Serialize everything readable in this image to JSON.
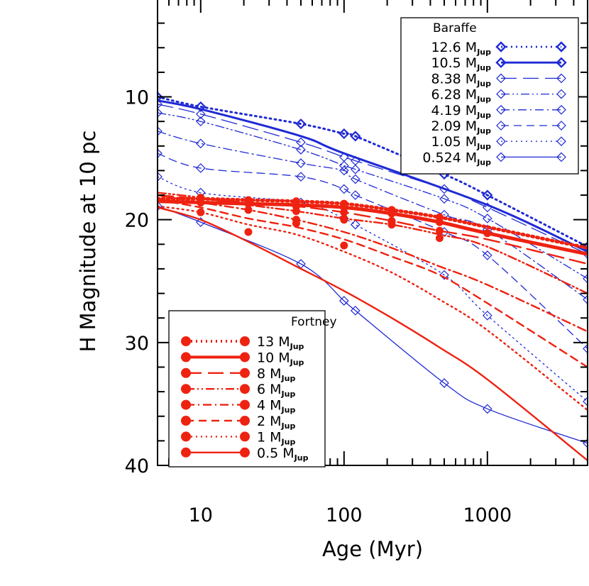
{
  "chart_data": {
    "type": "line",
    "xlabel": "Age (Myr)",
    "ylabel": "H Magnitude at 10 pc",
    "xscale": "log",
    "xlim": [
      5,
      5000
    ],
    "ylim": [
      40,
      2
    ],
    "y_inverted": true,
    "x_ticks": [
      10,
      100,
      1000
    ],
    "x_tick_labels": [
      "10",
      "100",
      "1000"
    ],
    "y_ticks": [
      10,
      20,
      30,
      40
    ],
    "y_tick_labels": [
      "10",
      "20",
      "30",
      "40"
    ],
    "colors": {
      "baraffe": "#1f2ad4",
      "fortney": "#ee2211"
    },
    "legends": [
      {
        "title": "Baraffe",
        "position": "top-right",
        "marker": "diamond-open",
        "sub_unit": "Jup"
      },
      {
        "title": "Fortney",
        "position": "bottom-left",
        "marker": "circle-filled",
        "sub_unit": "Jup"
      }
    ],
    "series": [
      {
        "name": "12.6 M",
        "model": "Baraffe",
        "linestyle": "dotted",
        "bold": true,
        "x": [
          5,
          10,
          50,
          100,
          120,
          500,
          1000,
          5000
        ],
        "y": [
          10.0,
          10.8,
          12.2,
          13.0,
          13.2,
          16.3,
          18.0,
          22.2
        ],
        "markers_x": [
          5,
          10,
          50,
          100,
          120,
          500,
          1000,
          5000
        ],
        "markers_y": [
          10.0,
          10.8,
          12.2,
          13.0,
          13.2,
          16.3,
          18.0,
          22.2
        ]
      },
      {
        "name": "10.5 M",
        "model": "Baraffe",
        "linestyle": "solid",
        "bold": true,
        "x": [
          5,
          10,
          50,
          100,
          1000,
          5000
        ],
        "y": [
          10.3,
          11.0,
          13.2,
          14.6,
          18.8,
          22.6
        ],
        "markers_x": [],
        "markers_y": []
      },
      {
        "name": "8.38 M",
        "model": "Baraffe",
        "linestyle": "longdash",
        "bold": false,
        "x": [
          5,
          10,
          50,
          100,
          120,
          500,
          1000,
          5000
        ],
        "y": [
          10.6,
          11.4,
          13.7,
          14.9,
          15.2,
          17.5,
          19.0,
          22.8
        ],
        "markers_x": [
          5,
          10,
          50,
          100,
          120,
          500,
          1000,
          5000
        ],
        "markers_y": [
          10.6,
          11.4,
          13.7,
          14.9,
          15.2,
          17.5,
          19.0,
          22.8
        ]
      },
      {
        "name": "6.28 M",
        "model": "Baraffe",
        "linestyle": "dashdotdot",
        "bold": false,
        "x": [
          5,
          10,
          50,
          100,
          120,
          500,
          1000,
          5000
        ],
        "y": [
          11.3,
          12.0,
          14.3,
          15.6,
          15.9,
          18.3,
          19.9,
          24.8
        ],
        "markers_x": [
          5,
          10,
          50,
          100,
          120,
          500,
          1000,
          5000
        ],
        "markers_y": [
          11.3,
          12.0,
          14.3,
          15.6,
          15.9,
          18.3,
          19.9,
          24.8
        ]
      },
      {
        "name": "4.19 M",
        "model": "Baraffe",
        "linestyle": "dashdot",
        "bold": false,
        "x": [
          5,
          10,
          50,
          100,
          120,
          500,
          1000,
          5000
        ],
        "y": [
          12.8,
          13.8,
          15.4,
          16.0,
          16.7,
          19.6,
          20.8,
          26.5
        ],
        "markers_x": [
          5,
          10,
          50,
          100,
          120,
          500,
          1000,
          5000
        ],
        "markers_y": [
          12.8,
          13.8,
          15.4,
          16.0,
          16.7,
          19.6,
          20.8,
          26.5
        ]
      },
      {
        "name": "2.09 M",
        "model": "Baraffe",
        "linestyle": "dashed",
        "bold": false,
        "x": [
          5,
          10,
          50,
          100,
          120,
          500,
          1000,
          5000
        ],
        "y": [
          14.6,
          15.8,
          16.5,
          17.5,
          18.0,
          21.0,
          22.9,
          30.5
        ],
        "markers_x": [
          5,
          10,
          50,
          100,
          120,
          500,
          1000,
          5000
        ],
        "markers_y": [
          14.6,
          15.8,
          16.5,
          17.5,
          18.0,
          21.0,
          22.9,
          30.5
        ]
      },
      {
        "name": "1.05 M",
        "model": "Baraffe",
        "linestyle": "dotted",
        "bold": false,
        "x": [
          5,
          10,
          50,
          100,
          120,
          500,
          1000,
          5000
        ],
        "y": [
          16.5,
          17.8,
          18.6,
          19.9,
          20.4,
          24.5,
          27.8,
          34.8
        ],
        "markers_x": [
          5,
          10,
          50,
          100,
          120,
          500,
          1000,
          5000
        ],
        "markers_y": [
          16.5,
          17.8,
          18.6,
          19.9,
          20.4,
          24.5,
          27.8,
          34.8
        ]
      },
      {
        "name": "0.524 M",
        "model": "Baraffe",
        "linestyle": "solid",
        "bold": false,
        "x": [
          5,
          10,
          50,
          100,
          120,
          500,
          1000,
          5000
        ],
        "y": [
          18.9,
          20.2,
          23.6,
          26.6,
          27.4,
          33.3,
          35.4,
          38.2
        ],
        "markers_x": [
          5,
          10,
          50,
          100,
          120,
          500,
          1000,
          5000
        ],
        "markers_y": [
          18.9,
          20.2,
          23.6,
          26.6,
          27.4,
          33.3,
          35.4,
          38.2
        ]
      },
      {
        "name": "13 M",
        "model": "Fortney",
        "linestyle": "dotted",
        "bold": true,
        "x": [
          5,
          10,
          21.5,
          46.4,
          100,
          215,
          464,
          1000,
          5000
        ],
        "y": [
          18.3,
          18.3,
          18.4,
          18.5,
          18.7,
          19.2,
          19.8,
          20.6,
          22.3
        ],
        "markers_x": [
          10,
          21.5,
          46.4,
          100,
          215,
          464
        ],
        "markers_y": [
          18.3,
          18.4,
          18.5,
          18.7,
          19.2,
          19.8
        ]
      },
      {
        "name": "10 M",
        "model": "Fortney",
        "linestyle": "solid",
        "bold": true,
        "x": [
          5,
          10,
          21.5,
          46.4,
          100,
          215,
          464,
          1000,
          5000
        ],
        "y": [
          18.5,
          18.6,
          18.7,
          18.8,
          19.0,
          19.5,
          20.2,
          21.1,
          22.8
        ],
        "markers_x": [
          10,
          21.5,
          46.4,
          100,
          215,
          464,
          1000
        ],
        "markers_y": [
          18.6,
          18.7,
          18.8,
          19.0,
          19.5,
          20.2,
          21.1
        ]
      },
      {
        "name": "8 M",
        "model": "Fortney",
        "linestyle": "longdash",
        "bold": false,
        "x": [
          5,
          10,
          21.5,
          46.4,
          100,
          215,
          464,
          1000,
          5000
        ],
        "y": [
          18.0,
          18.3,
          18.6,
          18.9,
          19.4,
          20.1,
          20.9,
          21.6,
          23.6
        ],
        "markers_x": [
          10,
          21.5,
          46.4,
          100,
          215,
          464
        ],
        "markers_y": [
          18.3,
          18.6,
          18.9,
          19.4,
          20.1,
          20.9
        ]
      },
      {
        "name": "6 M",
        "model": "Fortney",
        "linestyle": "dashdotdot",
        "bold": false,
        "x": [
          5,
          10,
          21.5,
          46.4,
          100,
          215,
          464,
          1000,
          5000
        ],
        "y": [
          17.8,
          18.2,
          18.8,
          19.3,
          19.9,
          20.4,
          21.2,
          22.2,
          26.0
        ],
        "markers_x": [
          10,
          46.4,
          100,
          215
        ],
        "markers_y": [
          18.2,
          19.3,
          19.9,
          20.4
        ]
      },
      {
        "name": "4 M",
        "model": "Fortney",
        "linestyle": "dashdot",
        "bold": false,
        "x": [
          5,
          10,
          21.5,
          46.4,
          100,
          215,
          464,
          1000,
          5000
        ],
        "y": [
          18.0,
          18.6,
          19.2,
          20.0,
          21.0,
          22.3,
          23.8,
          25.3,
          29.1
        ],
        "markers_x": [
          10,
          21.5,
          46.4,
          100,
          215,
          464
        ],
        "markers_y": [
          18.6,
          19.2,
          20.0,
          20.0,
          20.2,
          21.5
        ]
      },
      {
        "name": "2 M",
        "model": "Fortney",
        "linestyle": "dashed",
        "bold": false,
        "x": [
          5,
          10,
          21.5,
          46.4,
          100,
          215,
          464,
          1000,
          5000
        ],
        "y": [
          18.4,
          19.0,
          19.9,
          20.6,
          21.6,
          23.0,
          24.5,
          26.8,
          32.0
        ],
        "markers_x": [
          21.5,
          46.4,
          100
        ],
        "markers_y": [
          21.0,
          20.3,
          22.1
        ]
      },
      {
        "name": "1 M",
        "model": "Fortney",
        "linestyle": "dotted",
        "bold": false,
        "x": [
          5,
          10,
          21.5,
          46.4,
          100,
          215,
          464,
          1000,
          5000
        ],
        "y": [
          18.9,
          19.4,
          20.4,
          21.2,
          22.6,
          24.3,
          26.5,
          29.0,
          35.5
        ],
        "markers_x": [
          10
        ],
        "markers_y": [
          19.4
        ]
      },
      {
        "name": "0.5 M",
        "model": "Fortney",
        "linestyle": "solid",
        "bold": false,
        "x": [
          5,
          10,
          21.5,
          46.4,
          100,
          215,
          464,
          1000,
          5000
        ],
        "y": [
          19.0,
          20.0,
          21.8,
          23.8,
          25.8,
          28.0,
          30.4,
          33.0,
          39.6
        ],
        "markers_x": [],
        "markers_y": []
      }
    ]
  }
}
